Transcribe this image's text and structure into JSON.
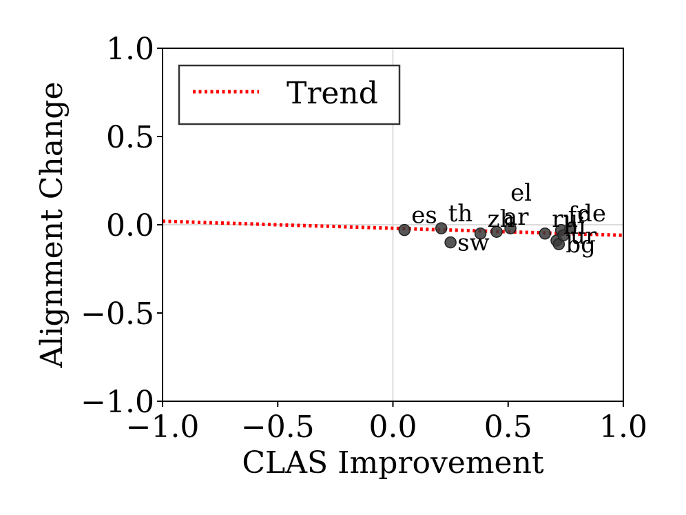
{
  "chart_data": {
    "type": "scatter",
    "title": "",
    "xlabel": "CLAS Improvement",
    "ylabel": "Alignment Change",
    "xlim": [
      -1.0,
      1.0
    ],
    "ylim": [
      -1.0,
      1.0
    ],
    "xticks": [
      "−1.0",
      "−0.5",
      "0.0",
      "0.5",
      "1.0"
    ],
    "yticks": [
      "−1.0",
      "−0.5",
      "0.0",
      "0.5",
      "1.0"
    ],
    "xtick_values": [
      -1.0,
      -0.5,
      0.0,
      0.5,
      1.0
    ],
    "ytick_values": [
      -1.0,
      -0.5,
      0.0,
      0.5,
      1.0
    ],
    "grid": false,
    "reference_lines": {
      "x": 0.0,
      "y": 0.0
    },
    "points": [
      {
        "label": "es",
        "x": 0.05,
        "y": -0.03
      },
      {
        "label": "th",
        "x": 0.21,
        "y": -0.02
      },
      {
        "label": "sw",
        "x": 0.25,
        "y": -0.1
      },
      {
        "label": "zh",
        "x": 0.38,
        "y": -0.05
      },
      {
        "label": "ar",
        "x": 0.45,
        "y": -0.04
      },
      {
        "label": "el",
        "x": 0.51,
        "y": -0.02
      },
      {
        "label": "ru",
        "x": 0.66,
        "y": -0.05
      },
      {
        "label": "hi",
        "x": 0.71,
        "y": -0.09
      },
      {
        "label": "bg",
        "x": 0.72,
        "y": -0.11
      },
      {
        "label": "fr",
        "x": 0.73,
        "y": -0.03
      },
      {
        "label": "ur",
        "x": 0.74,
        "y": -0.06
      },
      {
        "label": "de",
        "x": 0.77,
        "y": -0.02
      }
    ],
    "trend": {
      "name": "Trend",
      "slope": -0.04,
      "intercept": -0.02,
      "color": "#ff0000",
      "style": "dotted"
    },
    "legend": {
      "placement": "top-left",
      "entries": [
        "Trend"
      ]
    },
    "colors": {
      "points": "#3a3a3a",
      "reference": "#d0d0d0"
    }
  }
}
